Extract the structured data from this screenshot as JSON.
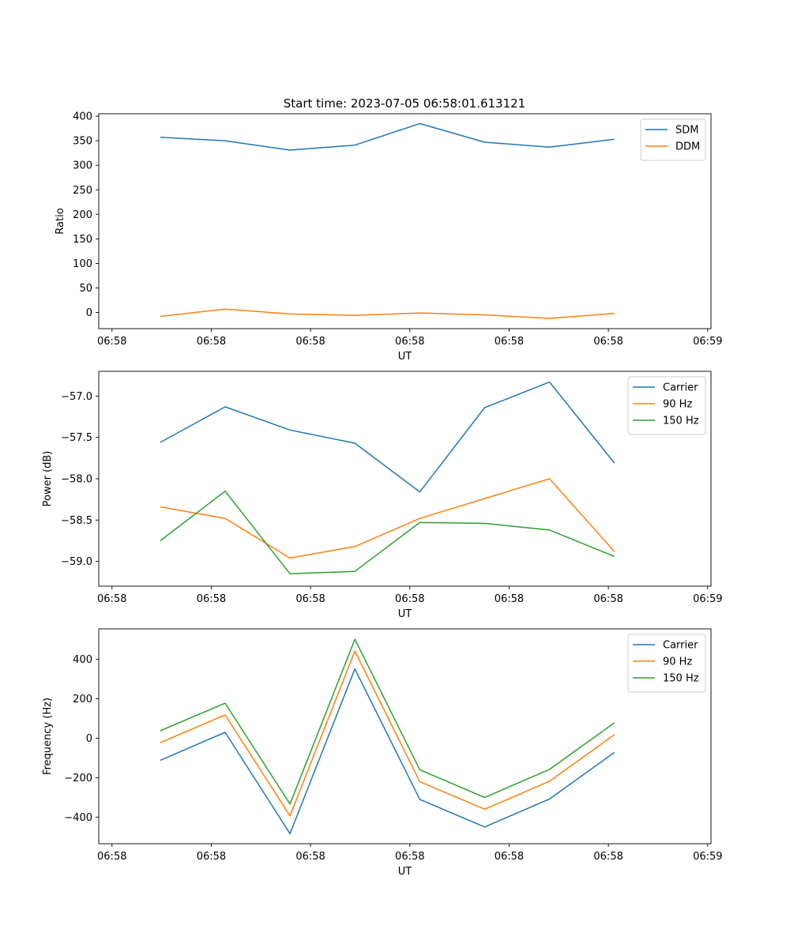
{
  "title": "Start time: 2023-07-05 06:58:01.613121",
  "chart_data": [
    {
      "type": "line",
      "ylabel": "Ratio",
      "xlabel": "UT",
      "xlim": [
        -0.2,
        9.05
      ],
      "ylim": [
        -33,
        405
      ],
      "x_ticks": [
        0,
        1.5,
        3,
        4.5,
        6,
        7.5,
        9
      ],
      "x_tick_labels": [
        "06:58",
        "06:58",
        "06:58",
        "06:58",
        "06:58",
        "06:58",
        "06:59"
      ],
      "y_ticks": [
        0,
        50,
        100,
        150,
        200,
        250,
        300,
        350,
        400
      ],
      "y_tick_labels": [
        "0",
        "50",
        "100",
        "150",
        "200",
        "250",
        "300",
        "350",
        "400"
      ],
      "legend_position": "top-right",
      "x": [
        0.73,
        1.71,
        2.69,
        3.67,
        4.65,
        5.63,
        6.61,
        7.59
      ],
      "series": [
        {
          "name": "SDM",
          "color": "#1f77b4",
          "values": [
            357,
            350,
            331,
            341,
            385,
            347,
            337,
            353
          ]
        },
        {
          "name": "DDM",
          "color": "#ff7f0e",
          "values": [
            -8,
            7,
            -3,
            -6,
            -1,
            -5,
            -12,
            -2
          ]
        }
      ]
    },
    {
      "type": "line",
      "ylabel": "Power (dB)",
      "xlabel": "UT",
      "xlim": [
        -0.2,
        9.05
      ],
      "ylim": [
        -59.3,
        -56.7
      ],
      "x_ticks": [
        0,
        1.5,
        3,
        4.5,
        6,
        7.5,
        9
      ],
      "x_tick_labels": [
        "06:58",
        "06:58",
        "06:58",
        "06:58",
        "06:58",
        "06:58",
        "06:59"
      ],
      "y_ticks": [
        -59.0,
        -58.5,
        -58.0,
        -57.5,
        -57.0
      ],
      "y_tick_labels": [
        "−59.0",
        "−58.5",
        "−58.0",
        "−57.5",
        "−57.0"
      ],
      "legend_position": "top-right",
      "x": [
        0.73,
        1.71,
        2.69,
        3.67,
        4.65,
        5.63,
        6.61,
        7.59
      ],
      "series": [
        {
          "name": "Carrier",
          "color": "#1f77b4",
          "values": [
            -57.56,
            -57.13,
            -57.41,
            -57.57,
            -58.16,
            -57.14,
            -56.83,
            -57.81
          ]
        },
        {
          "name": "90 Hz",
          "color": "#ff7f0e",
          "values": [
            -58.34,
            -58.48,
            -58.96,
            -58.82,
            -58.48,
            -58.24,
            -58.0,
            -58.88
          ]
        },
        {
          "name": "150 Hz",
          "color": "#2ca02c",
          "values": [
            -58.75,
            -58.15,
            -59.15,
            -59.12,
            -58.53,
            -58.54,
            -58.62,
            -58.94
          ]
        }
      ]
    },
    {
      "type": "line",
      "ylabel": "Frequency (Hz)",
      "xlabel": "UT",
      "xlim": [
        -0.2,
        9.05
      ],
      "ylim": [
        -535,
        555
      ],
      "x_ticks": [
        0,
        1.5,
        3,
        4.5,
        6,
        7.5,
        9
      ],
      "x_tick_labels": [
        "06:58",
        "06:58",
        "06:58",
        "06:58",
        "06:58",
        "06:58",
        "06:59"
      ],
      "y_ticks": [
        -400,
        -200,
        0,
        200,
        400
      ],
      "y_tick_labels": [
        "−400",
        "−200",
        "0",
        "200",
        "400"
      ],
      "legend_position": "top-right",
      "x": [
        0.73,
        1.71,
        2.69,
        3.67,
        4.65,
        5.63,
        6.61,
        7.59
      ],
      "series": [
        {
          "name": "Carrier",
          "color": "#1f77b4",
          "values": [
            -112,
            30,
            -484,
            352,
            -310,
            -450,
            -308,
            -72
          ]
        },
        {
          "name": "90 Hz",
          "color": "#ff7f0e",
          "values": [
            -22,
            118,
            -394,
            442,
            -220,
            -360,
            -218,
            18
          ]
        },
        {
          "name": "150 Hz",
          "color": "#2ca02c",
          "values": [
            38,
            178,
            -334,
            502,
            -160,
            -300,
            -158,
            78
          ]
        }
      ]
    }
  ]
}
